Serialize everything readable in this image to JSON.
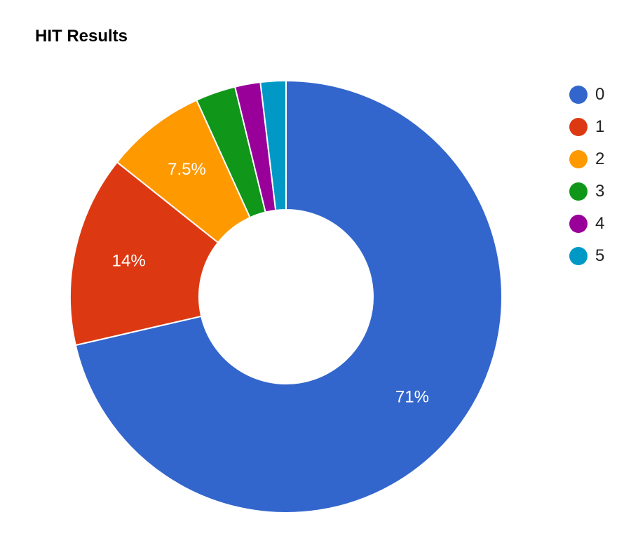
{
  "chart_data": {
    "type": "pie",
    "style": "donut",
    "title": "HIT Results",
    "categories": [
      "0",
      "1",
      "2",
      "3",
      "4",
      "5"
    ],
    "values": [
      71.4,
      14.3,
      7.5,
      3.0,
      1.9,
      1.9
    ],
    "value_labels": [
      "71%",
      "14%",
      "7.5%",
      "",
      "",
      ""
    ],
    "colors": [
      "#3366cc",
      "#dc3912",
      "#ff9900",
      "#109618",
      "#990099",
      "#0099c6"
    ],
    "legend_position": "right",
    "start_angle": "top",
    "direction": "clockwise"
  }
}
